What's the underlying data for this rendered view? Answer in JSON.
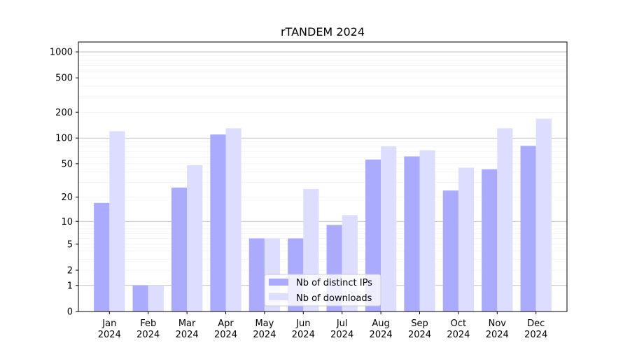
{
  "chart_data": {
    "type": "bar",
    "title": "rTANDEM 2024",
    "xlabel": "",
    "ylabel": "",
    "yscale": "symlog",
    "ylim": [
      0,
      1300
    ],
    "yticks": [
      0,
      1,
      2,
      5,
      10,
      20,
      50,
      100,
      200,
      500,
      1000
    ],
    "grid": true,
    "legend_position": "lower-center",
    "categories": [
      "Jan\n2024",
      "Feb\n2024",
      "Mar\n2024",
      "Apr\n2024",
      "May\n2024",
      "Jun\n2024",
      "Jul\n2024",
      "Aug\n2024",
      "Sep\n2024",
      "Oct\n2024",
      "Nov\n2024",
      "Dec\n2024"
    ],
    "series": [
      {
        "name": "Nb of distinct IPs",
        "color": "#aaaaff",
        "values": [
          17,
          1,
          26,
          110,
          6,
          6,
          9,
          56,
          61,
          24,
          43,
          81
        ]
      },
      {
        "name": "Nb of downloads",
        "color": "#ddddff",
        "values": [
          120,
          1,
          48,
          130,
          6,
          25,
          12,
          80,
          72,
          45,
          130,
          168
        ]
      }
    ]
  }
}
